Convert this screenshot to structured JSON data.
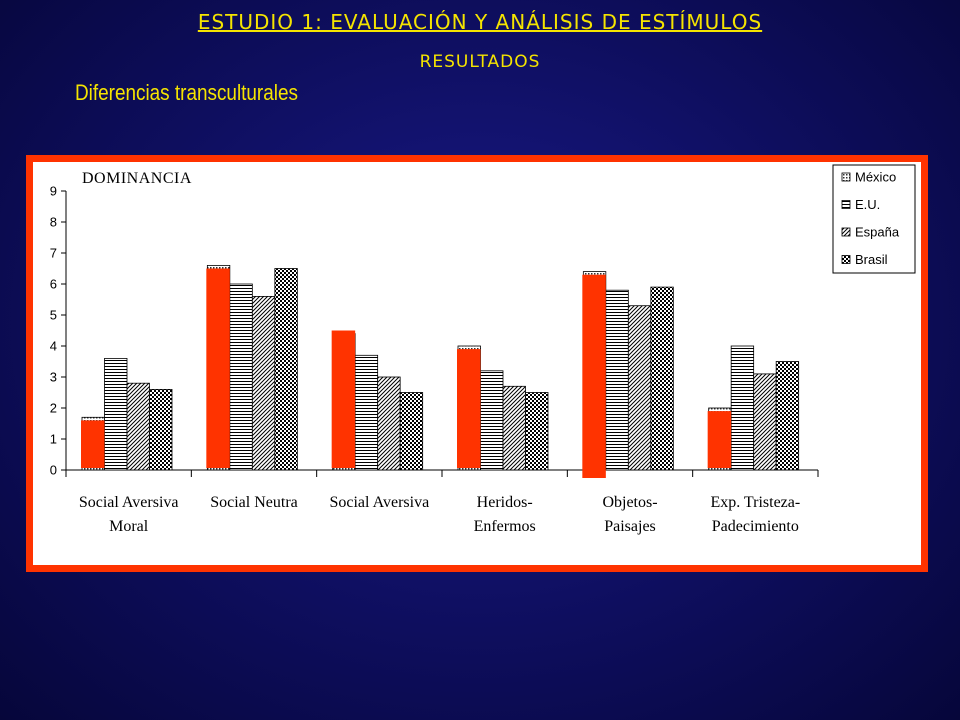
{
  "slide": {
    "title": "ESTUDIO 1: EVALUACIÓN Y ANÁLISIS DE ESTÍMULOS",
    "subtitle": "RESULTADOS",
    "section": "Diferencias transculturales"
  },
  "chart_data": {
    "type": "bar",
    "title": "DOMINANCIA",
    "xlabel": "",
    "ylabel": "",
    "ylim": [
      0,
      9
    ],
    "yticks": [
      0,
      1,
      2,
      3,
      4,
      5,
      6,
      7,
      8,
      9
    ],
    "categories": [
      [
        "Social Aversiva",
        "Moral"
      ],
      [
        "Social Neutra"
      ],
      [
        "Social Aversiva"
      ],
      [
        "Heridos-",
        "Enfermos"
      ],
      [
        "Objetos-",
        "Paisajes"
      ],
      [
        "Exp. Tristeza-",
        "Padecimiento"
      ]
    ],
    "series": [
      {
        "name": "México",
        "pattern": "dots",
        "values": [
          1.7,
          6.6,
          4.4,
          4.0,
          6.4,
          2.0
        ]
      },
      {
        "name": "E.U.",
        "pattern": "hlines",
        "values": [
          3.6,
          6.0,
          3.7,
          3.2,
          5.8,
          4.0
        ]
      },
      {
        "name": "España",
        "pattern": "diag",
        "values": [
          2.8,
          5.6,
          3.0,
          2.7,
          5.3,
          3.1
        ]
      },
      {
        "name": "Brasil",
        "pattern": "checker",
        "values": [
          2.6,
          6.5,
          2.5,
          2.5,
          5.9,
          3.5
        ]
      }
    ],
    "overlay": {
      "color": "#ff3300",
      "values": [
        1.6,
        6.5,
        4.5,
        3.9,
        6.3,
        1.9
      ]
    },
    "legend_position": "top-right",
    "grid": false
  }
}
